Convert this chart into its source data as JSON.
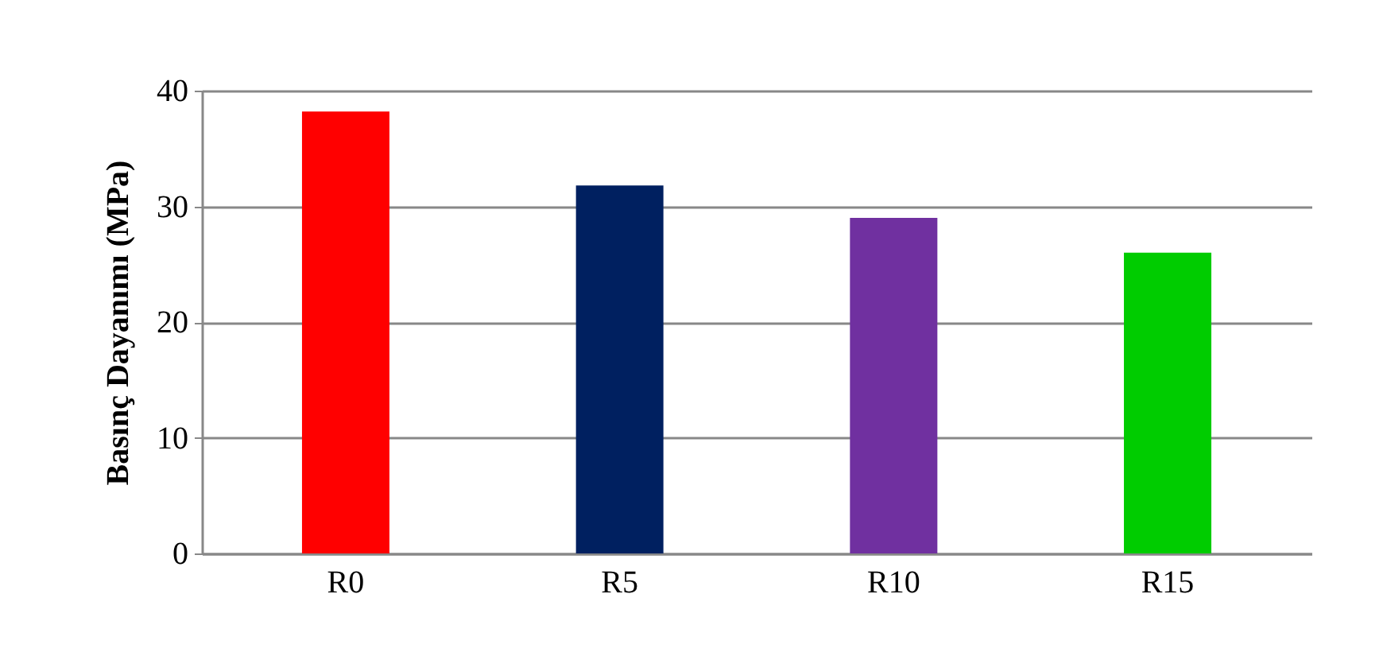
{
  "chart_data": {
    "type": "bar",
    "ylabel": "Basınç Dayanımı (MPa)",
    "categories": [
      "R0",
      "R5",
      "R10",
      "R15"
    ],
    "values": [
      38.2,
      31.8,
      29.0,
      26.0
    ],
    "colors": [
      "#ff0000",
      "#002060",
      "#7030a0",
      "#00cc00"
    ],
    "ylim": [
      0,
      40
    ],
    "yticks": [
      0,
      10,
      20,
      30,
      40
    ],
    "grid": "y"
  }
}
